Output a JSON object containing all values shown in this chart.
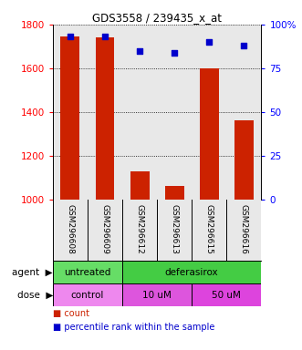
{
  "title": "GDS3558 / 239435_x_at",
  "samples": [
    "GSM296608",
    "GSM296609",
    "GSM296612",
    "GSM296613",
    "GSM296615",
    "GSM296616"
  ],
  "counts": [
    1745,
    1740,
    1130,
    1060,
    1600,
    1360
  ],
  "percentiles": [
    93,
    93,
    85,
    84,
    90,
    88
  ],
  "ylim_left": [
    1000,
    1800
  ],
  "ylim_right": [
    0,
    100
  ],
  "bar_color": "#cc2200",
  "dot_color": "#0000cc",
  "yticks_left": [
    1000,
    1200,
    1400,
    1600,
    1800
  ],
  "yticks_right": [
    0,
    25,
    50,
    75,
    100
  ],
  "agent_labels": [
    {
      "text": "untreated",
      "start": 0,
      "end": 2,
      "color": "#66dd66"
    },
    {
      "text": "deferasirox",
      "start": 2,
      "end": 6,
      "color": "#44cc44"
    }
  ],
  "dose_labels": [
    {
      "text": "control",
      "start": 0,
      "end": 2,
      "color": "#ee88ee"
    },
    {
      "text": "10 uM",
      "start": 2,
      "end": 4,
      "color": "#dd55dd"
    },
    {
      "text": "50 uM",
      "start": 4,
      "end": 6,
      "color": "#dd44dd"
    }
  ],
  "plot_bg_color": "#e8e8e8",
  "tick_bg_color": "#c8c8c8",
  "bar_width": 0.55,
  "legend_count_color": "#cc2200",
  "legend_pct_color": "#0000cc"
}
